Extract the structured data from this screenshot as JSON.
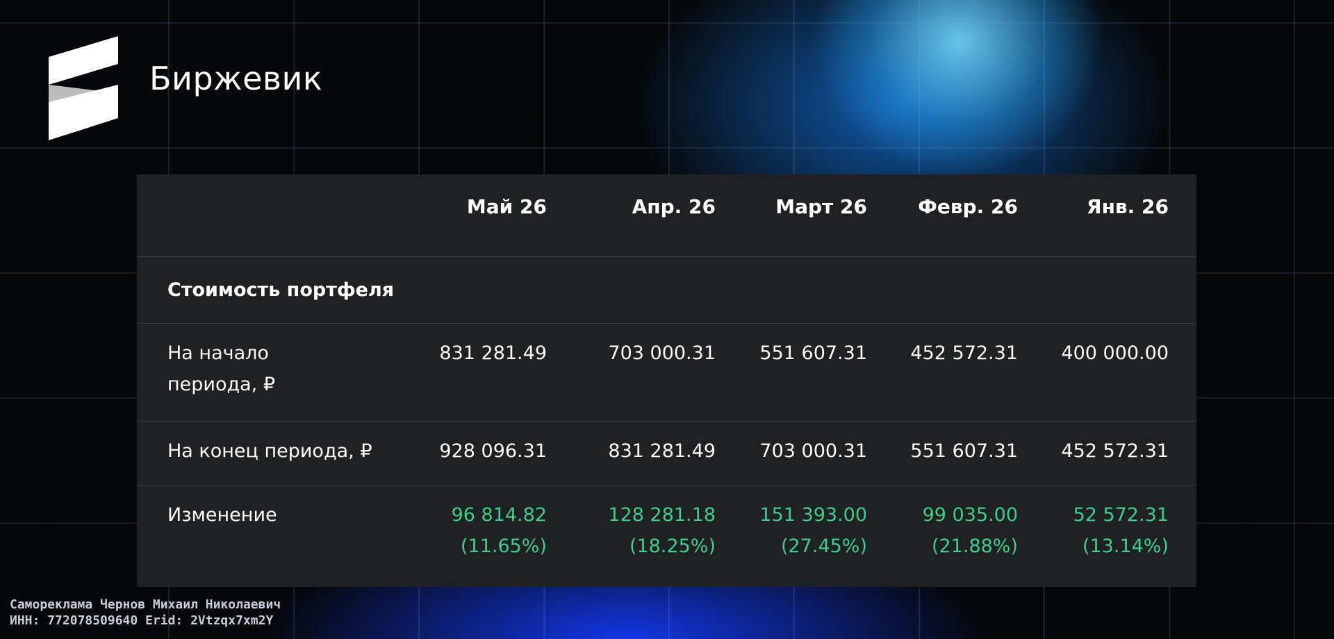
{
  "brand": {
    "name": "Биржевик"
  },
  "table": {
    "columns": [
      "Май 26",
      "Апр. 26",
      "Март 26",
      "Февр. 26",
      "Янв. 26"
    ],
    "section": "Стоимость портфеля",
    "rows": [
      {
        "label": [
          "На начало",
          "периода, ₽"
        ],
        "cells": [
          "831 281.49",
          "703 000.31",
          "551 607.31",
          "452 572.31",
          "400 000.00"
        ]
      },
      {
        "label": [
          "На конец периода, ₽"
        ],
        "cells": [
          "928 096.31",
          "831 281.49",
          "703 000.31",
          "551 607.31",
          "452 572.31"
        ]
      },
      {
        "label": [
          "Изменение"
        ],
        "cells": [
          [
            "96 814.82",
            "(11.65%)"
          ],
          [
            "128 281.18",
            "(18.25%)"
          ],
          [
            "151 393.00",
            "(27.45%)"
          ],
          [
            "99 035.00",
            "(21.88%)"
          ],
          [
            "52 572.31",
            "(13.14%)"
          ]
        ]
      }
    ]
  },
  "footer": {
    "lines": [
      "Самореклама Чернов Михаил Николаевич",
      "ИНН: 772078509640 Erid: 2Vtzqx7xm2Y"
    ]
  }
}
